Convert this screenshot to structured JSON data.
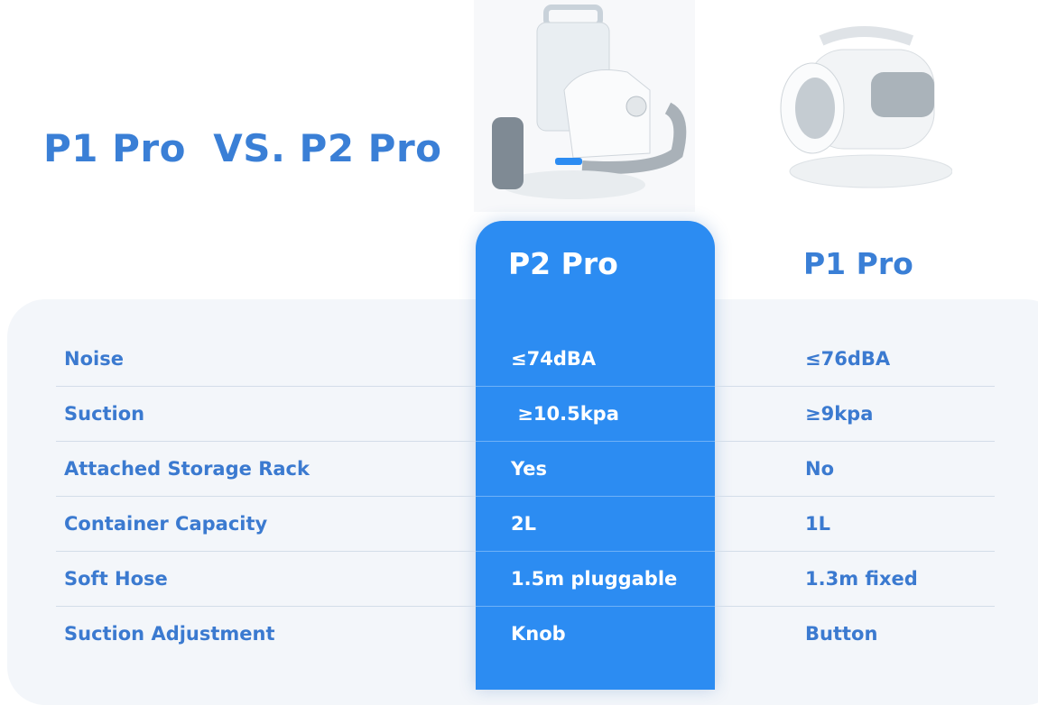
{
  "title": "P1 Pro  VS. P2 Pro",
  "columns": [
    "P2 Pro",
    "P1 Pro"
  ],
  "colors": {
    "accent": "#2c8cf2",
    "text_blue": "#3b7ad0",
    "panel": "#f3f6fa"
  },
  "rows": [
    {
      "label": "Noise",
      "p2": "≤74dBA",
      "p1": "≤76dBA"
    },
    {
      "label": "Suction",
      "p2": " ≥10.5kpa",
      "p1": "≥9kpa"
    },
    {
      "label": "Attached Storage Rack",
      "p2": "Yes",
      "p1": "No"
    },
    {
      "label": "Container Capacity",
      "p2": "2L",
      "p1": "1L"
    },
    {
      "label": "Soft Hose",
      "p2": "1.5m pluggable",
      "p1": "1.3m fixed"
    },
    {
      "label": "Suction Adjustment",
      "p2": "Knob",
      "p1": "Button"
    }
  ]
}
